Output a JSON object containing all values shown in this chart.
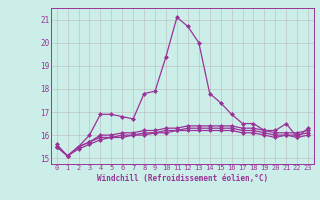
{
  "xlabel": "Windchill (Refroidissement éolien,°C)",
  "background_color": "#cceee8",
  "line_color": "#993399",
  "grid_color": "#bbbbbb",
  "hours": [
    0,
    1,
    2,
    3,
    4,
    5,
    6,
    7,
    8,
    9,
    10,
    11,
    12,
    13,
    14,
    15,
    16,
    17,
    18,
    19,
    20,
    21,
    22,
    23
  ],
  "series": [
    [
      15.6,
      15.1,
      15.5,
      16.0,
      16.9,
      16.9,
      16.8,
      16.7,
      17.8,
      17.9,
      19.4,
      21.1,
      20.7,
      20.0,
      17.8,
      17.4,
      16.9,
      16.5,
      16.5,
      16.2,
      16.2,
      16.5,
      15.9,
      16.3
    ],
    [
      15.5,
      15.1,
      15.5,
      15.7,
      16.0,
      16.0,
      16.1,
      16.1,
      16.2,
      16.2,
      16.3,
      16.3,
      16.4,
      16.4,
      16.4,
      16.4,
      16.4,
      16.3,
      16.3,
      16.2,
      16.1,
      16.1,
      16.1,
      16.2
    ],
    [
      15.5,
      15.1,
      15.5,
      15.7,
      15.9,
      15.9,
      16.0,
      16.0,
      16.1,
      16.1,
      16.2,
      16.2,
      16.3,
      16.3,
      16.3,
      16.3,
      16.3,
      16.2,
      16.2,
      16.1,
      16.0,
      16.0,
      16.0,
      16.1
    ],
    [
      15.5,
      15.1,
      15.4,
      15.6,
      15.8,
      15.9,
      15.9,
      16.0,
      16.0,
      16.1,
      16.1,
      16.2,
      16.2,
      16.2,
      16.2,
      16.2,
      16.2,
      16.1,
      16.1,
      16.0,
      15.9,
      16.0,
      15.9,
      16.0
    ]
  ],
  "ylim": [
    14.75,
    21.5
  ],
  "yticks": [
    15,
    16,
    17,
    18,
    19,
    20,
    21
  ],
  "xtick_labels": [
    "0",
    "1",
    "2",
    "3",
    "4",
    "5",
    "6",
    "7",
    "8",
    "9",
    "10",
    "11",
    "12",
    "13",
    "14",
    "15",
    "16",
    "17",
    "18",
    "19",
    "20",
    "21",
    "22",
    "23"
  ],
  "marker": "D",
  "markersize": 2.0,
  "linewidth": 0.9
}
